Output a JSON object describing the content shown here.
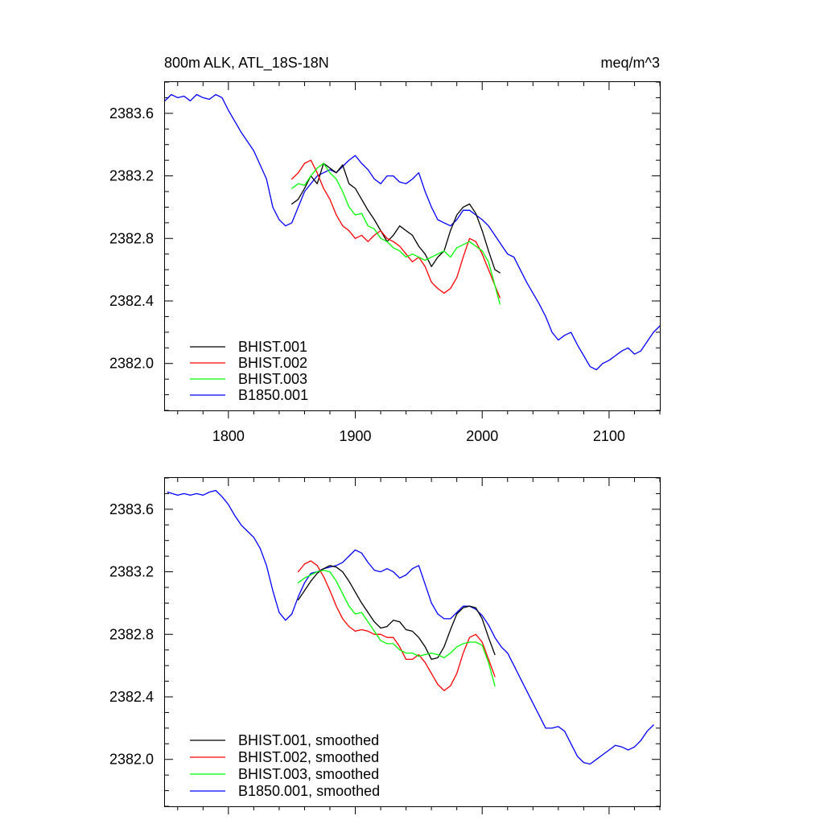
{
  "colors": {
    "BHIST.001": "#000000",
    "BHIST.002": "#ff0000",
    "BHIST.003": "#00ff00",
    "B1850.001": "#0000ff"
  },
  "chart_data": [
    {
      "type": "line",
      "title": "800m ALK, ATL_18S-18N",
      "units": "meq/m^3",
      "xlim": [
        1750,
        2140
      ],
      "ylim": [
        2381.7,
        2383.8
      ],
      "xticks": [
        1800,
        1900,
        2000,
        2100
      ],
      "xtick_labels": [
        "1800",
        "1900",
        "2000",
        "2100"
      ],
      "yticks": [
        2382.0,
        2382.4,
        2382.8,
        2383.2,
        2383.6
      ],
      "ytick_labels": [
        "2382.0",
        "2382.4",
        "2382.8",
        "2383.2",
        "2383.6"
      ],
      "grid": false,
      "legend_position": "bottom-left",
      "series": [
        {
          "name": "BHIST.001",
          "color_key": "BHIST.001",
          "x": [
            1850,
            1855,
            1860,
            1865,
            1870,
            1875,
            1880,
            1885,
            1890,
            1895,
            1900,
            1905,
            1910,
            1915,
            1920,
            1925,
            1930,
            1935,
            1940,
            1945,
            1950,
            1955,
            1960,
            1965,
            1970,
            1975,
            1980,
            1985,
            1990,
            1995,
            2000,
            2005,
            2010,
            2014
          ],
          "y": [
            2383.02,
            2383.05,
            2383.12,
            2383.2,
            2383.15,
            2383.28,
            2383.25,
            2383.22,
            2383.27,
            2383.15,
            2383.12,
            2383.05,
            2382.98,
            2382.92,
            2382.85,
            2382.78,
            2382.82,
            2382.88,
            2382.85,
            2382.82,
            2382.75,
            2382.7,
            2382.62,
            2382.68,
            2382.72,
            2382.85,
            2382.95,
            2383.0,
            2383.02,
            2382.96,
            2382.85,
            2382.72,
            2382.6,
            2382.58
          ]
        },
        {
          "name": "BHIST.002",
          "color_key": "BHIST.002",
          "x": [
            1850,
            1855,
            1860,
            1865,
            1870,
            1875,
            1880,
            1885,
            1890,
            1895,
            1900,
            1905,
            1910,
            1915,
            1920,
            1925,
            1930,
            1935,
            1940,
            1945,
            1950,
            1955,
            1960,
            1965,
            1970,
            1975,
            1980,
            1985,
            1990,
            1995,
            2000,
            2005,
            2010,
            2014
          ],
          "y": [
            2383.18,
            2383.22,
            2383.28,
            2383.3,
            2383.22,
            2383.12,
            2383.05,
            2382.95,
            2382.88,
            2382.85,
            2382.8,
            2382.82,
            2382.78,
            2382.82,
            2382.85,
            2382.8,
            2382.78,
            2382.75,
            2382.7,
            2382.65,
            2382.68,
            2382.62,
            2382.52,
            2382.48,
            2382.45,
            2382.48,
            2382.55,
            2382.68,
            2382.8,
            2382.78,
            2382.7,
            2382.6,
            2382.5,
            2382.42
          ]
        },
        {
          "name": "BHIST.003",
          "color_key": "BHIST.003",
          "x": [
            1850,
            1855,
            1860,
            1865,
            1870,
            1875,
            1880,
            1885,
            1890,
            1895,
            1900,
            1905,
            1910,
            1915,
            1920,
            1925,
            1930,
            1935,
            1940,
            1945,
            1950,
            1955,
            1960,
            1965,
            1970,
            1975,
            1980,
            1985,
            1990,
            1995,
            2000,
            2005,
            2010,
            2014
          ],
          "y": [
            2383.12,
            2383.15,
            2383.14,
            2383.2,
            2383.25,
            2383.28,
            2383.22,
            2383.18,
            2383.1,
            2383.0,
            2382.95,
            2382.96,
            2382.88,
            2382.86,
            2382.8,
            2382.78,
            2382.74,
            2382.72,
            2382.68,
            2382.7,
            2382.68,
            2382.66,
            2382.68,
            2382.7,
            2382.72,
            2382.68,
            2382.74,
            2382.76,
            2382.78,
            2382.75,
            2382.72,
            2382.65,
            2382.5,
            2382.38
          ]
        },
        {
          "name": "B1850.001",
          "color_key": "B1850.001",
          "x": [
            1750,
            1755,
            1760,
            1765,
            1770,
            1775,
            1780,
            1785,
            1790,
            1795,
            1800,
            1805,
            1810,
            1815,
            1820,
            1825,
            1830,
            1835,
            1840,
            1845,
            1850,
            1855,
            1860,
            1865,
            1870,
            1875,
            1880,
            1885,
            1890,
            1895,
            1900,
            1905,
            1910,
            1915,
            1920,
            1925,
            1930,
            1935,
            1940,
            1945,
            1950,
            1955,
            1960,
            1965,
            1970,
            1975,
            1980,
            1985,
            1990,
            1995,
            2000,
            2005,
            2010,
            2015,
            2020,
            2025,
            2030,
            2035,
            2040,
            2045,
            2050,
            2055,
            2060,
            2065,
            2070,
            2075,
            2080,
            2085,
            2090,
            2095,
            2100,
            2105,
            2110,
            2115,
            2120,
            2125,
            2130,
            2135,
            2140
          ],
          "y": [
            2383.68,
            2383.72,
            2383.7,
            2383.71,
            2383.68,
            2383.72,
            2383.7,
            2383.69,
            2383.72,
            2383.7,
            2383.62,
            2383.55,
            2383.48,
            2383.42,
            2383.36,
            2383.27,
            2383.18,
            2383.0,
            2382.92,
            2382.88,
            2382.9,
            2383.0,
            2383.1,
            2383.15,
            2383.2,
            2383.22,
            2383.24,
            2383.22,
            2383.26,
            2383.3,
            2383.33,
            2383.28,
            2383.24,
            2383.18,
            2383.15,
            2383.2,
            2383.2,
            2383.16,
            2383.15,
            2383.18,
            2383.22,
            2383.1,
            2383.0,
            2382.92,
            2382.9,
            2382.88,
            2382.92,
            2382.98,
            2382.98,
            2382.95,
            2382.92,
            2382.88,
            2382.82,
            2382.76,
            2382.7,
            2382.68,
            2382.6,
            2382.52,
            2382.45,
            2382.38,
            2382.3,
            2382.2,
            2382.15,
            2382.18,
            2382.2,
            2382.12,
            2382.05,
            2381.98,
            2381.96,
            2382.0,
            2382.02,
            2382.05,
            2382.08,
            2382.1,
            2382.06,
            2382.08,
            2382.14,
            2382.2,
            2382.24
          ]
        }
      ],
      "legend": [
        {
          "label": "BHIST.001",
          "color_key": "BHIST.001"
        },
        {
          "label": "BHIST.002",
          "color_key": "BHIST.002"
        },
        {
          "label": "BHIST.003",
          "color_key": "BHIST.003"
        },
        {
          "label": "B1850.001",
          "color_key": "B1850.001"
        }
      ]
    },
    {
      "type": "line",
      "title": "",
      "units": "",
      "xlim": [
        1750,
        2140
      ],
      "ylim": [
        2381.7,
        2383.8
      ],
      "xticks": [
        1800,
        1900,
        2000,
        2100
      ],
      "xtick_labels": [],
      "yticks": [
        2382.0,
        2382.4,
        2382.8,
        2383.2,
        2383.6
      ],
      "ytick_labels": [
        "2382.0",
        "2382.4",
        "2382.8",
        "2383.2",
        "2383.6"
      ],
      "grid": false,
      "legend_position": "bottom-left",
      "series": [
        {
          "name": "BHIST.001, smoothed",
          "color_key": "BHIST.001",
          "x": [
            1855,
            1860,
            1865,
            1870,
            1875,
            1880,
            1885,
            1890,
            1895,
            1900,
            1905,
            1910,
            1915,
            1920,
            1925,
            1930,
            1935,
            1940,
            1945,
            1950,
            1955,
            1960,
            1965,
            1970,
            1975,
            1980,
            1985,
            1990,
            1995,
            2000,
            2005,
            2010
          ],
          "y": [
            2383.02,
            2383.08,
            2383.14,
            2383.19,
            2383.22,
            2383.24,
            2383.23,
            2383.2,
            2383.14,
            2383.07,
            2383.0,
            2382.94,
            2382.88,
            2382.84,
            2382.85,
            2382.89,
            2382.88,
            2382.83,
            2382.82,
            2382.78,
            2382.72,
            2382.64,
            2382.65,
            2382.72,
            2382.83,
            2382.93,
            2382.97,
            2382.98,
            2382.97,
            2382.9,
            2382.78,
            2382.67
          ]
        },
        {
          "name": "BHIST.002, smoothed",
          "color_key": "BHIST.002",
          "x": [
            1855,
            1860,
            1865,
            1870,
            1875,
            1880,
            1885,
            1890,
            1895,
            1900,
            1905,
            1910,
            1915,
            1920,
            1925,
            1930,
            1935,
            1940,
            1945,
            1950,
            1955,
            1960,
            1965,
            1970,
            1975,
            1980,
            1985,
            1990,
            1995,
            2000,
            2005,
            2010
          ],
          "y": [
            2383.2,
            2383.25,
            2383.27,
            2383.24,
            2383.17,
            2383.08,
            2382.98,
            2382.9,
            2382.85,
            2382.82,
            2382.83,
            2382.82,
            2382.8,
            2382.8,
            2382.78,
            2382.78,
            2382.72,
            2382.64,
            2382.64,
            2382.67,
            2382.62,
            2382.55,
            2382.48,
            2382.44,
            2382.47,
            2382.55,
            2382.68,
            2382.78,
            2382.8,
            2382.75,
            2382.64,
            2382.53
          ]
        },
        {
          "name": "BHIST.003, smoothed",
          "color_key": "BHIST.003",
          "x": [
            1855,
            1860,
            1865,
            1870,
            1875,
            1880,
            1885,
            1890,
            1895,
            1900,
            1905,
            1910,
            1915,
            1920,
            1925,
            1930,
            1935,
            1940,
            1945,
            1950,
            1955,
            1960,
            1965,
            1970,
            1975,
            1980,
            1985,
            1990,
            1995,
            2000,
            2005,
            2010
          ],
          "y": [
            2383.13,
            2383.16,
            2383.18,
            2383.2,
            2383.21,
            2383.2,
            2383.14,
            2383.06,
            2382.98,
            2382.93,
            2382.94,
            2382.88,
            2382.82,
            2382.76,
            2382.74,
            2382.74,
            2382.7,
            2382.68,
            2382.68,
            2382.66,
            2382.67,
            2382.68,
            2382.67,
            2382.65,
            2382.68,
            2382.72,
            2382.74,
            2382.75,
            2382.75,
            2382.73,
            2382.62,
            2382.47
          ]
        },
        {
          "name": "B1850.001, smoothed",
          "color_key": "B1850.001",
          "x": [
            1752,
            1760,
            1765,
            1770,
            1775,
            1780,
            1785,
            1790,
            1795,
            1800,
            1805,
            1810,
            1815,
            1820,
            1825,
            1830,
            1835,
            1840,
            1845,
            1850,
            1855,
            1860,
            1865,
            1870,
            1875,
            1880,
            1885,
            1890,
            1895,
            1900,
            1905,
            1910,
            1915,
            1920,
            1925,
            1930,
            1935,
            1940,
            1945,
            1950,
            1955,
            1960,
            1965,
            1970,
            1975,
            1980,
            1985,
            1990,
            1995,
            2000,
            2005,
            2010,
            2015,
            2020,
            2025,
            2030,
            2035,
            2040,
            2045,
            2050,
            2055,
            2060,
            2065,
            2070,
            2075,
            2080,
            2085,
            2090,
            2095,
            2100,
            2105,
            2110,
            2115,
            2120,
            2125,
            2130,
            2135
          ],
          "y": [
            2383.71,
            2383.69,
            2383.7,
            2383.69,
            2383.7,
            2383.69,
            2383.71,
            2383.72,
            2383.68,
            2383.63,
            2383.56,
            2383.5,
            2383.46,
            2383.42,
            2383.35,
            2383.24,
            2383.08,
            2382.94,
            2382.89,
            2382.93,
            2383.04,
            2383.13,
            2383.19,
            2383.2,
            2383.22,
            2383.23,
            2383.24,
            2383.26,
            2383.3,
            2383.34,
            2383.32,
            2383.26,
            2383.21,
            2383.2,
            2383.22,
            2383.2,
            2383.16,
            2383.18,
            2383.22,
            2383.24,
            2383.12,
            2383.0,
            2382.93,
            2382.9,
            2382.9,
            2382.94,
            2382.98,
            2382.98,
            2382.96,
            2382.92,
            2382.86,
            2382.78,
            2382.72,
            2382.68,
            2382.6,
            2382.52,
            2382.44,
            2382.36,
            2382.28,
            2382.2,
            2382.2,
            2382.21,
            2382.18,
            2382.1,
            2382.02,
            2381.98,
            2381.97,
            2382.0,
            2382.03,
            2382.06,
            2382.09,
            2382.08,
            2382.06,
            2382.08,
            2382.12,
            2382.18,
            2382.22
          ]
        }
      ],
      "legend": [
        {
          "label": "BHIST.001, smoothed",
          "color_key": "BHIST.001"
        },
        {
          "label": "BHIST.002, smoothed",
          "color_key": "BHIST.002"
        },
        {
          "label": "BHIST.003, smoothed",
          "color_key": "BHIST.003"
        },
        {
          "label": "B1850.001, smoothed",
          "color_key": "B1850.001"
        }
      ]
    }
  ]
}
